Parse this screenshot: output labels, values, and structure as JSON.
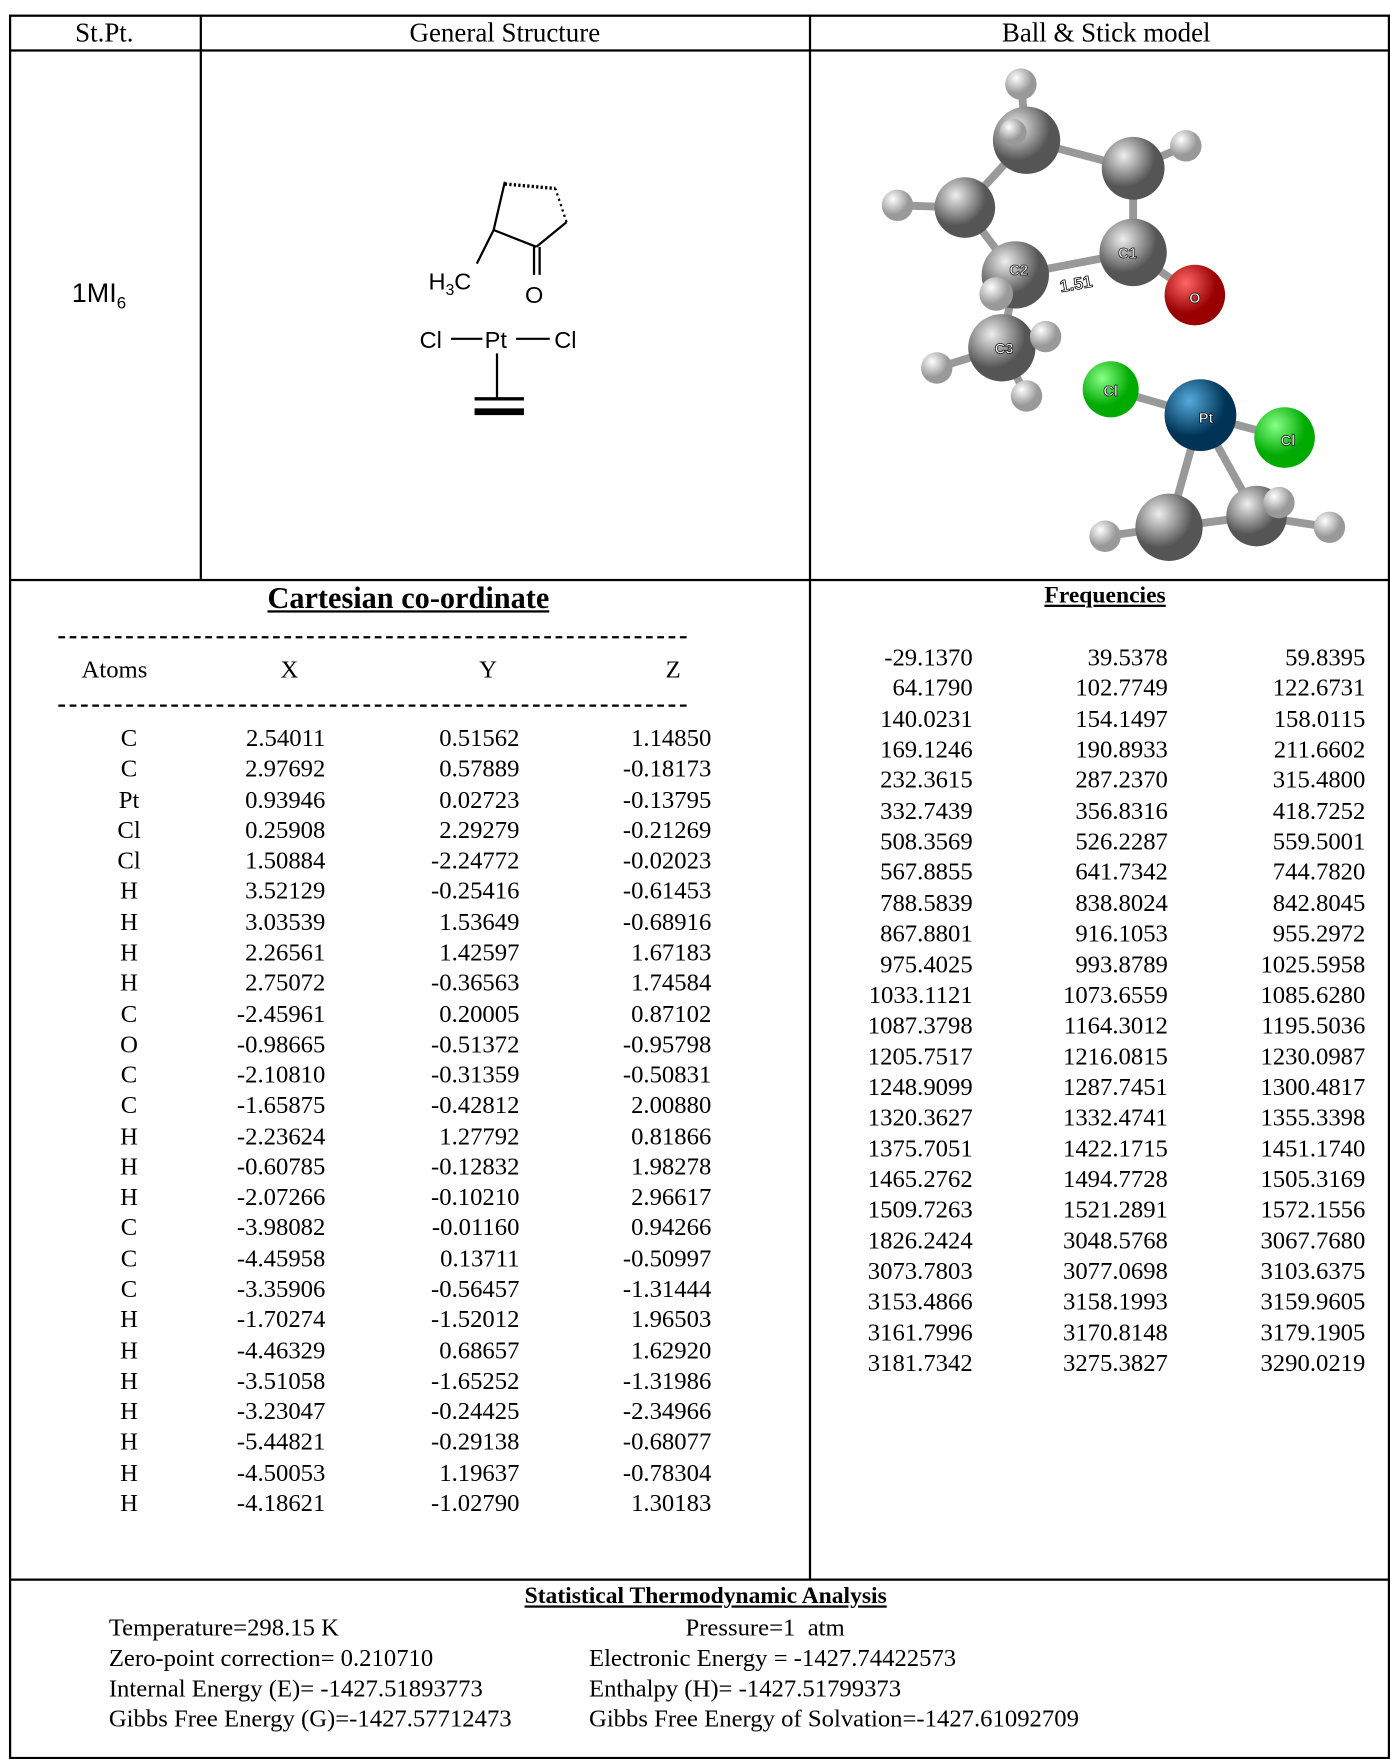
{
  "header": [
    "St.Pt.",
    "General Structure",
    "Ball & Stick model"
  ],
  "stationary_point": {
    "label": "1MI",
    "subscript": "6"
  },
  "structure": {
    "methyl": {
      "main": "H",
      "sub": "3",
      "tail": "C"
    },
    "oxygen": "O",
    "chlorine_left": "Cl",
    "platinum": "Pt",
    "chlorine_right": "Cl"
  },
  "ball_stick": {
    "atom_labels": [
      "C1",
      "C2",
      "C3",
      "O",
      "Cl",
      "Pt",
      "Cl"
    ],
    "bond_length": "1.51"
  },
  "cartesian": {
    "title": "Cartesian co-ordinate",
    "columns": [
      "Atoms",
      "X",
      "Y",
      "Z"
    ],
    "rows": [
      [
        "C",
        "2.54011",
        "0.51562",
        "1.14850"
      ],
      [
        "C",
        "2.97692",
        "0.57889",
        "-0.18173"
      ],
      [
        "Pt",
        "0.93946",
        "0.02723",
        "-0.13795"
      ],
      [
        "Cl",
        "0.25908",
        "2.29279",
        "-0.21269"
      ],
      [
        "Cl",
        "1.50884",
        "-2.24772",
        "-0.02023"
      ],
      [
        "H",
        "3.52129",
        "-0.25416",
        "-0.61453"
      ],
      [
        "H",
        "3.03539",
        "1.53649",
        "-0.68916"
      ],
      [
        "H",
        "2.26561",
        "1.42597",
        "1.67183"
      ],
      [
        "H",
        "2.75072",
        "-0.36563",
        "1.74584"
      ],
      [
        "C",
        "-2.45961",
        "0.20005",
        "0.87102"
      ],
      [
        "O",
        "-0.98665",
        "-0.51372",
        "-0.95798"
      ],
      [
        "C",
        "-2.10810",
        "-0.31359",
        "-0.50831"
      ],
      [
        "C",
        "-1.65875",
        "-0.42812",
        "2.00880"
      ],
      [
        "H",
        "-2.23624",
        "1.27792",
        "0.81866"
      ],
      [
        "H",
        "-0.60785",
        "-0.12832",
        "1.98278"
      ],
      [
        "H",
        "-2.07266",
        "-0.10210",
        "2.96617"
      ],
      [
        "C",
        "-3.98082",
        "-0.01160",
        "0.94266"
      ],
      [
        "C",
        "-4.45958",
        "0.13711",
        "-0.50997"
      ],
      [
        "C",
        "-3.35906",
        "-0.56457",
        "-1.31444"
      ],
      [
        "H",
        "-1.70274",
        "-1.52012",
        "1.96503"
      ],
      [
        "H",
        "-4.46329",
        "0.68657",
        "1.62920"
      ],
      [
        "H",
        "-3.51058",
        "-1.65252",
        "-1.31986"
      ],
      [
        "H",
        "-3.23047",
        "-0.24425",
        "-2.34966"
      ],
      [
        "H",
        "-5.44821",
        "-0.29138",
        "-0.68077"
      ],
      [
        "H",
        "-4.50053",
        "1.19637",
        "-0.78304"
      ],
      [
        "H",
        "-4.18621",
        "-1.02790",
        "1.30183"
      ]
    ]
  },
  "frequencies": {
    "title": "Frequencies",
    "values": [
      "-29.1370",
      "39.5378",
      "59.8395",
      "64.1790",
      "102.7749",
      "122.6731",
      "140.0231",
      "154.1497",
      "158.0115",
      "169.1246",
      "190.8933",
      "211.6602",
      "232.3615",
      "287.2370",
      "315.4800",
      "332.7439",
      "356.8316",
      "418.7252",
      "508.3569",
      "526.2287",
      "559.5001",
      "567.8855",
      "641.7342",
      "744.7820",
      "788.5839",
      "838.8024",
      "842.8045",
      "867.8801",
      "916.1053",
      "955.2972",
      "975.4025",
      "993.8789",
      "1025.5958",
      "1033.1121",
      "1073.6559",
      "1085.6280",
      "1087.3798",
      "1164.3012",
      "1195.5036",
      "1205.7517",
      "1216.0815",
      "1230.0987",
      "1248.9099",
      "1287.7451",
      "1300.4817",
      "1320.3627",
      "1332.4741",
      "1355.3398",
      "1375.7051",
      "1422.1715",
      "1451.1740",
      "1465.2762",
      "1494.7728",
      "1505.3169",
      "1509.7263",
      "1521.2891",
      "1572.1556",
      "1826.2424",
      "3048.5768",
      "3067.7680",
      "3073.7803",
      "3077.0698",
      "3103.6375",
      "3153.4866",
      "3158.1993",
      "3159.9605",
      "3161.7996",
      "3170.8148",
      "3179.1905",
      "3181.7342",
      "3275.3827",
      "3290.0219"
    ]
  },
  "thermo": {
    "title": "Statistical Thermodynamic Analysis",
    "lines": [
      [
        "Temperature=298.15 K",
        "Pressure=1  atm"
      ],
      [
        "Zero-point correction= 0.210710",
        "Electronic Energy = -1427.74422573"
      ],
      [
        "Internal Energy (E)= -1427.51893773",
        "Enthalpy (H)= -1427.51799373"
      ],
      [
        "Gibbs Free Energy (G)=-1427.57712473",
        "Gibbs Free Energy of Solvation=-1427.61092709"
      ]
    ]
  }
}
